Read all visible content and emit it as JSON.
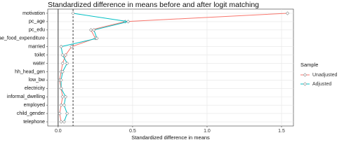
{
  "chart_data": {
    "type": "dotline",
    "title": "Standardized difference in means before and after logit matching",
    "x_label": "Standardized difference in means",
    "categories": [
      "motivation",
      "pc_age",
      "pc_edu",
      "ae_food_expenditure",
      "married",
      "toilet",
      "water",
      "hh_head_gen",
      "low_bw",
      "electricity",
      "informal_dwelling",
      "employed",
      "child_gender",
      "telephone"
    ],
    "series": [
      {
        "name": "Unadjusted",
        "color": "#F8766D",
        "values": [
          1.54,
          0.45,
          0.22,
          0.25,
          0.09,
          0.05,
          0.03,
          0.02,
          0.01,
          0.02,
          0.03,
          0.02,
          0.01,
          0.02
        ]
      },
      {
        "name": "Adjusted",
        "color": "#00BFC4",
        "values": [
          0.1,
          0.47,
          0.24,
          0.26,
          0.02,
          0.03,
          0.06,
          0.03,
          0.02,
          0.02,
          0.05,
          0.04,
          0.06,
          0.04
        ]
      }
    ],
    "legend_title": "Sample",
    "legend": "right",
    "xlim": [
      -0.07,
      1.58
    ],
    "xticks": [
      {
        "value": 0,
        "label": "0.0"
      },
      0.5,
      {
        "value": 1,
        "label": "1.0"
      },
      1.5
    ],
    "vlines": [
      {
        "value": 0,
        "style": "solid"
      },
      {
        "value": 0.1,
        "style": "dashed"
      }
    ],
    "grid": true
  }
}
